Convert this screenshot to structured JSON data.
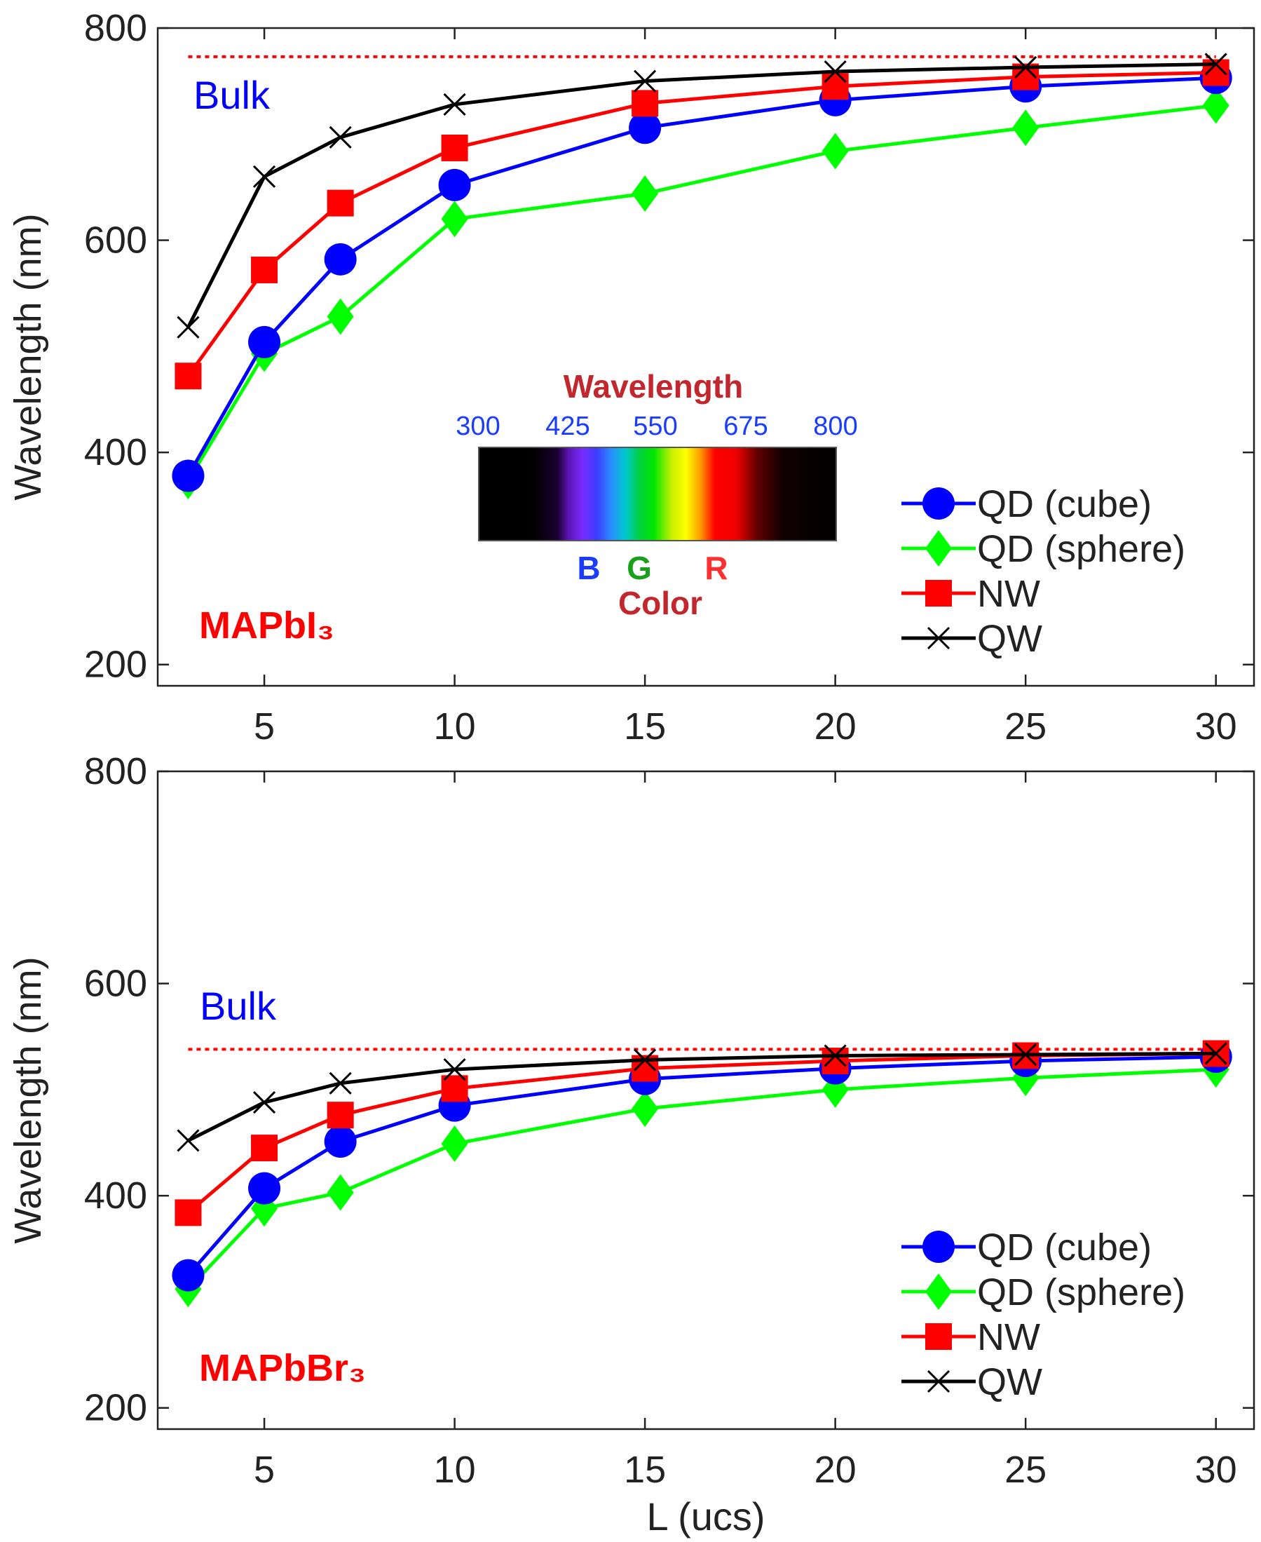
{
  "chart_data": [
    {
      "type": "line",
      "material_label": "MAPbI₃",
      "bulk_label": "Bulk",
      "bulk_value": 773,
      "ylabel": "Wavelength (nm)",
      "xlabel": "",
      "ylim": [
        180,
        800
      ],
      "xlim": [
        2.2,
        31
      ],
      "yticks": [
        200,
        400,
        600,
        800
      ],
      "xticks": [
        5,
        10,
        15,
        20,
        25,
        30
      ],
      "x": [
        3,
        5,
        7,
        10,
        15,
        20,
        25,
        30
      ],
      "series": [
        {
          "name": "QD (cube)",
          "values": [
            378,
            504,
            582,
            652,
            706,
            732,
            745,
            753
          ]
        },
        {
          "name": "QD (sphere)",
          "values": [
            373,
            493,
            528,
            620,
            644,
            684,
            706,
            727
          ]
        },
        {
          "name": "NW",
          "values": [
            472,
            572,
            635,
            687,
            729,
            745,
            754,
            758
          ]
        },
        {
          "name": "QW",
          "values": [
            518,
            660,
            697,
            728,
            750,
            759,
            763,
            766
          ]
        }
      ],
      "inset": {
        "title": "Wavelength",
        "ticks": [
          "300",
          "425",
          "550",
          "675",
          "800"
        ],
        "colors_label": [
          "B",
          "G",
          "R"
        ],
        "subtitle": "Color"
      }
    },
    {
      "type": "line",
      "material_label": "MAPbBr₃",
      "bulk_label": "Bulk",
      "bulk_value": 538,
      "ylabel": "Wavelength (nm)",
      "xlabel": "L (ucs)",
      "ylim": [
        180,
        800
      ],
      "xlim": [
        2.2,
        31
      ],
      "yticks": [
        200,
        400,
        600,
        800
      ],
      "xticks": [
        5,
        10,
        15,
        20,
        25,
        30
      ],
      "x": [
        3,
        5,
        7,
        10,
        15,
        20,
        25,
        30
      ],
      "series": [
        {
          "name": "QD (cube)",
          "values": [
            325,
            407,
            451,
            485,
            510,
            520,
            527,
            531
          ]
        },
        {
          "name": "QD (sphere)",
          "values": [
            312,
            388,
            403,
            449,
            482,
            500,
            511,
            519
          ]
        },
        {
          "name": "NW",
          "values": [
            384,
            445,
            476,
            501,
            520,
            527,
            532,
            534
          ]
        },
        {
          "name": "QW",
          "values": [
            452,
            488,
            506,
            519,
            528,
            532,
            533,
            534
          ]
        }
      ]
    }
  ],
  "styles": {
    "QD (cube)": {
      "color": "#0000ff",
      "marker": "circle"
    },
    "QD (sphere)": {
      "color": "#00ff00",
      "marker": "diamond"
    },
    "NW": {
      "color": "#ff0000",
      "marker": "square"
    },
    "QW": {
      "color": "#000000",
      "marker": "x"
    },
    "bulk_line_color": "#ff0000",
    "bulk_label_color": "#0000ff",
    "material_label_color": "#ff0000",
    "inset_title_color": "#c1272d",
    "inset_tick_color": "#1a3cff",
    "B_color": "#1a3cff",
    "G_color": "#1aa01a",
    "R_color": "#ff3030"
  }
}
